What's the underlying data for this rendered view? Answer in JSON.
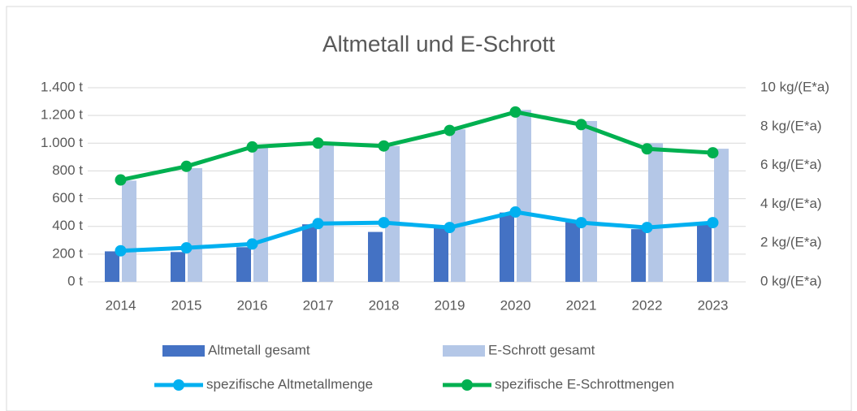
{
  "chart_data": {
    "type": "bar",
    "title": "Altmetall und E-Schrott",
    "categories": [
      "2014",
      "2015",
      "2016",
      "2017",
      "2018",
      "2019",
      "2020",
      "2021",
      "2022",
      "2023"
    ],
    "ylim": [
      0,
      1400
    ],
    "yticks": [
      {
        "value": 0,
        "label": "0 t"
      },
      {
        "value": 200,
        "label": "200 t"
      },
      {
        "value": 400,
        "label": "400 t"
      },
      {
        "value": 600,
        "label": "600 t"
      },
      {
        "value": 800,
        "label": "800 t"
      },
      {
        "value": 1000,
        "label": "1.000 t"
      },
      {
        "value": 1200,
        "label": "1.200 t"
      },
      {
        "value": 1400,
        "label": "1.400 t"
      }
    ],
    "y2lim": [
      0,
      10
    ],
    "y2ticks": [
      {
        "value": 0,
        "label": "0 kg/(E*a)"
      },
      {
        "value": 2,
        "label": "2 kg/(E*a)"
      },
      {
        "value": 4,
        "label": "4 kg/(E*a)"
      },
      {
        "value": 6,
        "label": "6 kg/(E*a)"
      },
      {
        "value": 8,
        "label": "8 kg/(E*a)"
      },
      {
        "value": 10,
        "label": "10 kg/(E*a)"
      }
    ],
    "grid": true,
    "legend": "bottom",
    "series": [
      {
        "name": "Altmetall gesamt",
        "type": "bar",
        "color": "#4472c4",
        "values": [
          220,
          215,
          250,
          415,
          360,
          390,
          500,
          430,
          380,
          420
        ]
      },
      {
        "name": "E-Schrott gesamt",
        "type": "bar",
        "color": "#b4c7e7",
        "values": [
          730,
          820,
          990,
          1010,
          980,
          1100,
          1240,
          1160,
          1000,
          960
        ]
      },
      {
        "name": "spezifische Altmetallmenge",
        "type": "line",
        "axis": "y2",
        "color": "#00b0f0",
        "values": [
          1.6,
          1.75,
          1.95,
          3.0,
          3.05,
          2.8,
          3.6,
          3.05,
          2.8,
          3.05
        ]
      },
      {
        "name": "spezifische E-Schrottmengen",
        "type": "line",
        "axis": "y2",
        "color": "#00b050",
        "values": [
          5.25,
          5.95,
          6.95,
          7.15,
          7.0,
          7.8,
          8.75,
          8.1,
          6.85,
          6.65
        ]
      }
    ]
  }
}
